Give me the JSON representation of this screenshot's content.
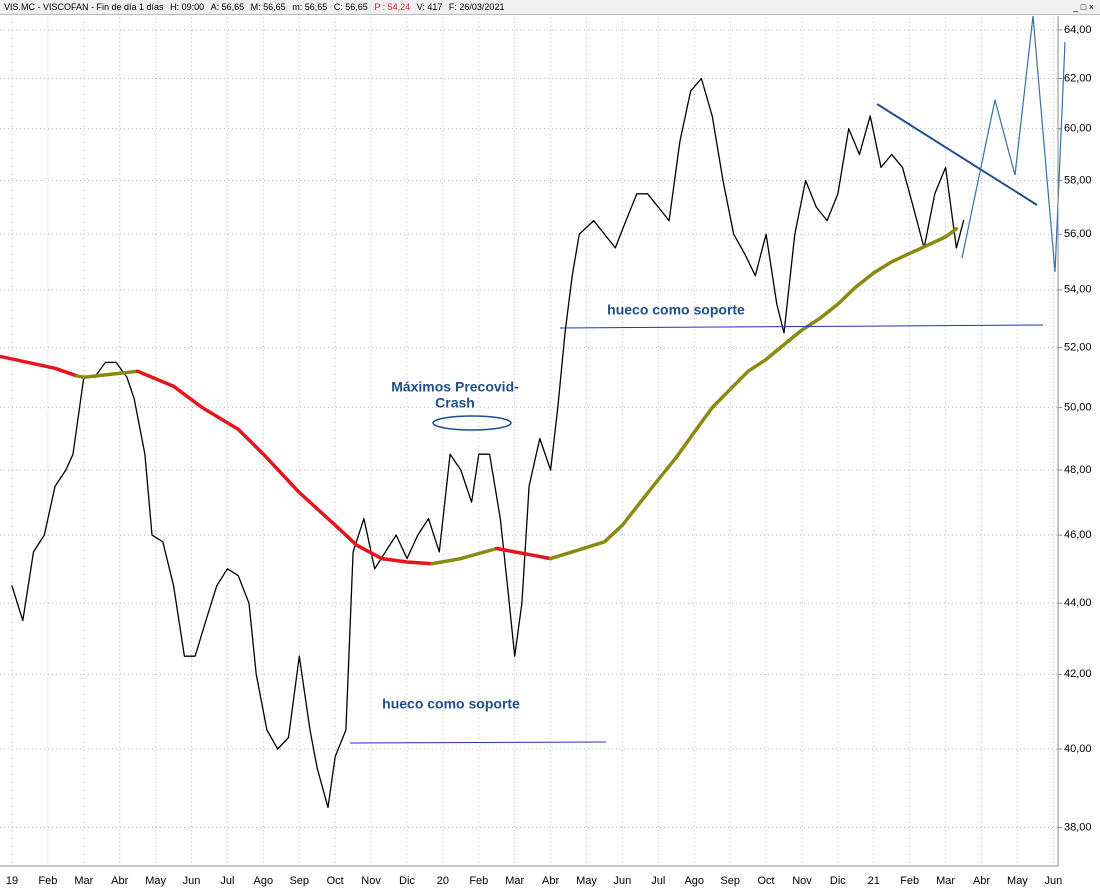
{
  "chart_data": {
    "type": "line",
    "title": "VIS.MC - VISCOFAN - Fin de día 1 días",
    "info": [
      "H: 09:00",
      "A: 56,65",
      "M: 56,65",
      "m: 56,65",
      "C: 56,65",
      "P : 54,24",
      "V: 417",
      "F: 26/03/2021"
    ],
    "annotations": [
      "Máximos Precovid-",
      "Crash",
      "hueco como soporte",
      "hueco como soporte"
    ],
    "log_scale": true,
    "grid": true,
    "xlim": [
      -0.334,
      29.13
    ],
    "ylim": [
      37.2,
      64.5
    ],
    "xticks": [
      {
        "value": 0,
        "label": "19"
      },
      {
        "value": 1,
        "label": "Feb"
      },
      {
        "value": 2,
        "label": "Mar"
      },
      {
        "value": 3,
        "label": "Abr"
      },
      {
        "value": 4,
        "label": "May"
      },
      {
        "value": 5,
        "label": "Jun"
      },
      {
        "value": 6,
        "label": "Jul"
      },
      {
        "value": 7,
        "label": "Ago"
      },
      {
        "value": 8,
        "label": "Sep"
      },
      {
        "value": 9,
        "label": "Oct"
      },
      {
        "value": 10,
        "label": "Nov"
      },
      {
        "value": 11,
        "label": "Dic"
      },
      {
        "value": 12,
        "label": "20"
      },
      {
        "value": 13,
        "label": "Feb"
      },
      {
        "value": 14,
        "label": "Mar"
      },
      {
        "value": 15,
        "label": "Abr"
      },
      {
        "value": 16,
        "label": "May"
      },
      {
        "value": 17,
        "label": "Jun"
      },
      {
        "value": 18,
        "label": "Jul"
      },
      {
        "value": 19,
        "label": "Ago"
      },
      {
        "value": 20,
        "label": "Sep"
      },
      {
        "value": 21,
        "label": "Oct"
      },
      {
        "value": 22,
        "label": "Nov"
      },
      {
        "value": 23,
        "label": "Dic"
      },
      {
        "value": 24,
        "label": "21"
      },
      {
        "value": 25,
        "label": "Feb"
      },
      {
        "value": 26,
        "label": "Mar"
      },
      {
        "value": 27,
        "label": "Abr"
      },
      {
        "value": 28,
        "label": "May"
      },
      {
        "value": 29,
        "label": "Jun"
      }
    ],
    "yticks": [
      {
        "value": 38,
        "label": "38,00"
      },
      {
        "value": 40,
        "label": "40,00"
      },
      {
        "value": 42,
        "label": "42,00"
      },
      {
        "value": 44,
        "label": "44,00"
      },
      {
        "value": 46,
        "label": "46,00"
      },
      {
        "value": 48,
        "label": "48,00"
      },
      {
        "value": 50,
        "label": "50,00"
      },
      {
        "value": 52,
        "label": "52,00"
      },
      {
        "value": 54,
        "label": "54,00"
      },
      {
        "value": 56,
        "label": "56,00"
      },
      {
        "value": 58,
        "label": "58,00"
      },
      {
        "value": 60,
        "label": "60,00"
      },
      {
        "value": 62,
        "label": "62,00"
      },
      {
        "value": 64,
        "label": "64,00"
      }
    ],
    "series": [
      {
        "color": "#000000",
        "width": 1.3,
        "x": [
          0,
          0.3,
          0.6,
          0.9,
          1.2,
          1.5,
          1.7,
          2.0,
          2.3,
          2.6,
          2.9,
          3.2,
          3.4,
          3.7,
          3.9,
          4.2,
          4.5,
          4.8,
          5.1,
          5.4,
          5.7,
          6.0,
          6.3,
          6.6,
          6.8,
          7.1,
          7.4,
          7.7,
          8.0,
          8.3,
          8.5,
          8.8,
          9.0,
          9.3,
          9.5,
          9.8,
          10.1,
          10.4,
          10.7,
          11.0,
          11.3,
          11.6,
          11.9,
          12.2,
          12.5,
          12.8,
          13.0,
          13.3,
          13.6,
          13.8,
          14.0,
          14.2,
          14.4,
          14.7,
          15.0,
          15.2,
          15.4,
          15.6,
          15.8,
          16.2,
          16.5,
          16.8,
          17.1,
          17.4,
          17.7,
          18.0,
          18.3,
          18.6,
          18.9,
          19.2,
          19.5,
          19.8,
          20.1,
          20.4,
          20.7,
          21.0,
          21.3,
          21.5,
          21.8,
          22.1,
          22.4,
          22.7,
          23.0,
          23.3,
          23.6,
          23.9,
          24.2,
          24.5,
          24.8,
          25.1,
          25.4,
          25.7,
          26.0,
          26.3,
          26.5
        ],
        "values": [
          44.5,
          43.5,
          45.5,
          46,
          47.5,
          48,
          48.5,
          51,
          51,
          51.5,
          51.5,
          51,
          50.3,
          48.5,
          46,
          45.8,
          44.5,
          42.5,
          42.5,
          43.5,
          44.5,
          45,
          44.8,
          44,
          42,
          40.5,
          40,
          40.3,
          42.5,
          40.5,
          39.5,
          38.5,
          39.8,
          40.5,
          45.5,
          46.5,
          45,
          45.5,
          46,
          45.3,
          46,
          46.5,
          45.5,
          48.5,
          48,
          47,
          48.5,
          48.5,
          46.5,
          44.5,
          42.5,
          44,
          47.5,
          49,
          48,
          50,
          52.5,
          54.5,
          56,
          56.5,
          56,
          55.5,
          56.5,
          57.5,
          57.5,
          57,
          56.5,
          59.5,
          61.5,
          62,
          60.5,
          58,
          56,
          55.3,
          54.5,
          56,
          53.5,
          52.5,
          56,
          58,
          57,
          56.5,
          57.5,
          60,
          59,
          60.5,
          58.5,
          59,
          58.5,
          57,
          55.5,
          57.5,
          58.5,
          55.5,
          56.5
        ]
      },
      {
        "color": "#e8141c",
        "width": 3.5,
        "x": [
          -0.33,
          1.2,
          1.8
        ],
        "values": [
          51.7,
          51.3,
          51.05
        ]
      },
      {
        "color": "#8a8a10",
        "width": 3.5,
        "x": [
          1.8,
          2.0,
          3.5
        ],
        "values": [
          51.05,
          51.0,
          51.2
        ]
      },
      {
        "color": "#e8141c",
        "width": 3.5,
        "x": [
          3.5,
          4.5,
          5.3,
          6.3,
          7.0,
          8.0,
          9.0,
          9.6,
          10.3,
          11.0,
          11.7
        ],
        "values": [
          51.2,
          50.7,
          50.0,
          49.3,
          48.5,
          47.3,
          46.3,
          45.7,
          45.3,
          45.2,
          45.15
        ]
      },
      {
        "color": "#8a8a10",
        "width": 3.5,
        "x": [
          11.7,
          12.5,
          13.5
        ],
        "values": [
          45.15,
          45.3,
          45.6
        ]
      },
      {
        "color": "#e8141c",
        "width": 3.5,
        "x": [
          13.5,
          14.0,
          14.5,
          15.0
        ],
        "values": [
          45.6,
          45.5,
          45.4,
          45.3
        ]
      },
      {
        "color": "#8a8a10",
        "width": 3.5,
        "x": [
          15.0,
          15.6,
          16.5,
          17.0,
          17.5,
          18.0,
          18.5,
          19.0,
          19.5,
          20.0,
          20.5,
          21.0,
          21.5,
          22.0,
          22.5,
          23.0,
          23.5,
          24.0,
          24.5,
          25.0,
          25.5,
          26.0,
          26.3
        ],
        "values": [
          45.3,
          45.5,
          45.8,
          46.3,
          47,
          47.7,
          48.4,
          49.2,
          50,
          50.6,
          51.2,
          51.6,
          52.1,
          52.6,
          53.0,
          53.5,
          54.1,
          54.6,
          55.0,
          55.3,
          55.6,
          55.9,
          56.2
        ]
      }
    ]
  }
}
